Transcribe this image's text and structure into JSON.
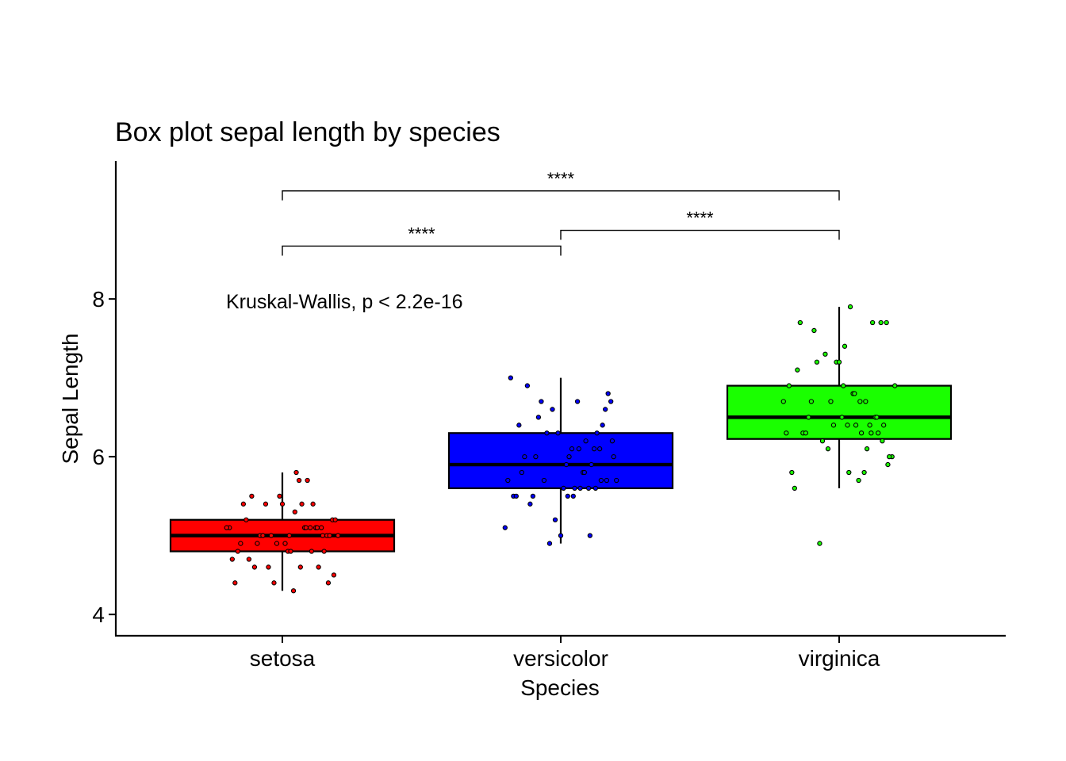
{
  "chart_data": {
    "type": "box",
    "title": "Box plot sepal length by species",
    "xlabel": "Species",
    "ylabel": "Sepal Length",
    "ylim": [
      3.73,
      9.75
    ],
    "yticks": [
      4,
      6,
      8
    ],
    "ytick_labels": [
      "4",
      "6",
      "8"
    ],
    "categories": [
      "setosa",
      "versicolor",
      "virginica"
    ],
    "annotation": "Kruskal-Wallis, p < 2.2e-16",
    "colors": {
      "setosa": "#ff0000",
      "versicolor": "#0000ff",
      "virginica": "#1aff00"
    },
    "boxes": [
      {
        "name": "setosa",
        "q1": 4.8,
        "median": 5.0,
        "q3": 5.2,
        "whisker_low": 4.3,
        "whisker_high": 5.8,
        "outliers": []
      },
      {
        "name": "versicolor",
        "q1": 5.6,
        "median": 5.9,
        "q3": 6.3,
        "whisker_low": 4.9,
        "whisker_high": 7.0,
        "outliers": []
      },
      {
        "name": "virginica",
        "q1": 6.225,
        "median": 6.5,
        "q3": 6.9,
        "whisker_low": 5.6,
        "whisker_high": 7.9,
        "outliers": [
          4.9
        ]
      }
    ],
    "comparisons": [
      {
        "group1": "setosa",
        "group2": "versicolor",
        "y": 8.67,
        "label": "****"
      },
      {
        "group1": "versicolor",
        "group2": "virginica",
        "y": 8.87,
        "label": "****"
      },
      {
        "group1": "setosa",
        "group2": "virginica",
        "y": 9.37,
        "label": "****"
      }
    ],
    "points": {
      "setosa": [
        [
          -0.19,
          5.1
        ],
        [
          -0.15,
          4.9
        ],
        [
          -0.12,
          4.7
        ],
        [
          -0.1,
          4.6
        ],
        [
          -0.08,
          5.0
        ],
        [
          -0.06,
          5.4
        ],
        [
          -0.05,
          4.6
        ],
        [
          -0.04,
          5.0
        ],
        [
          -0.03,
          4.4
        ],
        [
          -0.02,
          4.9
        ],
        [
          0.0,
          5.4
        ],
        [
          0.02,
          4.8
        ],
        [
          0.03,
          4.8
        ],
        [
          0.04,
          4.3
        ],
        [
          0.05,
          5.8
        ],
        [
          0.06,
          5.7
        ],
        [
          0.07,
          5.4
        ],
        [
          0.08,
          5.1
        ],
        [
          0.09,
          5.7
        ],
        [
          0.1,
          5.1
        ],
        [
          0.11,
          5.4
        ],
        [
          0.12,
          5.1
        ],
        [
          0.13,
          4.6
        ],
        [
          0.14,
          5.1
        ],
        [
          0.15,
          4.8
        ],
        [
          0.16,
          5.0
        ],
        [
          0.17,
          5.0
        ],
        [
          0.18,
          5.2
        ],
        [
          0.19,
          5.2
        ],
        [
          -0.18,
          4.7
        ],
        [
          -0.16,
          4.8
        ],
        [
          -0.14,
          5.4
        ],
        [
          -0.13,
          5.2
        ],
        [
          -0.11,
          5.5
        ],
        [
          -0.09,
          4.9
        ],
        [
          -0.07,
          5.0
        ],
        [
          -0.01,
          5.5
        ],
        [
          0.01,
          4.9
        ],
        [
          -0.17,
          4.4
        ],
        [
          -0.2,
          5.1
        ],
        [
          0.2,
          5.0
        ],
        [
          0.185,
          4.5
        ],
        [
          0.165,
          4.4
        ],
        [
          0.145,
          5.0
        ],
        [
          0.125,
          5.1
        ],
        [
          0.105,
          4.8
        ],
        [
          0.085,
          5.1
        ],
        [
          0.065,
          4.6
        ],
        [
          0.045,
          5.3
        ],
        [
          0.025,
          5.0
        ]
      ],
      "versicolor": [
        [
          -0.18,
          7.0
        ],
        [
          -0.15,
          6.4
        ],
        [
          -0.12,
          6.9
        ],
        [
          -0.1,
          5.5
        ],
        [
          -0.08,
          6.5
        ],
        [
          -0.06,
          5.7
        ],
        [
          -0.05,
          6.3
        ],
        [
          -0.04,
          4.9
        ],
        [
          -0.03,
          6.6
        ],
        [
          -0.02,
          5.2
        ],
        [
          0.0,
          5.0
        ],
        [
          0.02,
          5.9
        ],
        [
          0.03,
          6.0
        ],
        [
          0.04,
          6.1
        ],
        [
          0.05,
          5.6
        ],
        [
          0.06,
          6.7
        ],
        [
          0.07,
          5.6
        ],
        [
          0.08,
          5.8
        ],
        [
          0.09,
          6.2
        ],
        [
          0.1,
          5.6
        ],
        [
          0.11,
          5.9
        ],
        [
          0.12,
          6.1
        ],
        [
          0.13,
          6.3
        ],
        [
          0.14,
          6.1
        ],
        [
          0.15,
          6.4
        ],
        [
          0.16,
          6.6
        ],
        [
          0.17,
          6.8
        ],
        [
          0.18,
          6.7
        ],
        [
          0.19,
          6.0
        ],
        [
          -0.19,
          5.7
        ],
        [
          -0.17,
          5.5
        ],
        [
          -0.16,
          5.5
        ],
        [
          -0.14,
          5.8
        ],
        [
          -0.13,
          6.0
        ],
        [
          -0.11,
          5.4
        ],
        [
          -0.09,
          6.0
        ],
        [
          -0.07,
          6.7
        ],
        [
          -0.01,
          6.3
        ],
        [
          0.01,
          5.6
        ],
        [
          0.025,
          5.5
        ],
        [
          0.045,
          5.5
        ],
        [
          0.065,
          6.1
        ],
        [
          0.085,
          5.8
        ],
        [
          0.105,
          5.0
        ],
        [
          0.125,
          5.6
        ],
        [
          0.145,
          5.7
        ],
        [
          0.165,
          5.7
        ],
        [
          0.185,
          6.2
        ],
        [
          -0.2,
          5.1
        ],
        [
          0.2,
          5.7
        ]
      ],
      "virginica": [
        [
          -0.19,
          6.3
        ],
        [
          -0.17,
          5.8
        ],
        [
          -0.15,
          7.1
        ],
        [
          -0.13,
          6.3
        ],
        [
          -0.11,
          6.5
        ],
        [
          -0.09,
          7.6
        ],
        [
          -0.07,
          4.9
        ],
        [
          -0.05,
          7.3
        ],
        [
          -0.03,
          6.7
        ],
        [
          -0.01,
          7.2
        ],
        [
          0.01,
          6.5
        ],
        [
          0.03,
          6.4
        ],
        [
          0.05,
          6.8
        ],
        [
          0.07,
          5.7
        ],
        [
          0.09,
          5.8
        ],
        [
          0.11,
          6.4
        ],
        [
          0.13,
          6.5
        ],
        [
          0.15,
          7.7
        ],
        [
          0.17,
          7.7
        ],
        [
          0.19,
          6.0
        ],
        [
          -0.18,
          6.9
        ],
        [
          -0.16,
          5.6
        ],
        [
          -0.14,
          7.7
        ],
        [
          -0.12,
          6.3
        ],
        [
          -0.1,
          6.7
        ],
        [
          -0.08,
          7.2
        ],
        [
          -0.06,
          6.2
        ],
        [
          -0.04,
          6.1
        ],
        [
          -0.02,
          6.4
        ],
        [
          0.0,
          7.2
        ],
        [
          0.02,
          7.4
        ],
        [
          0.04,
          7.9
        ],
        [
          0.06,
          6.4
        ],
        [
          0.08,
          6.3
        ],
        [
          0.1,
          6.1
        ],
        [
          0.12,
          7.7
        ],
        [
          0.14,
          6.3
        ],
        [
          0.16,
          6.4
        ],
        [
          0.18,
          6.0
        ],
        [
          0.2,
          6.9
        ],
        [
          -0.2,
          6.7
        ],
        [
          0.015,
          6.9
        ],
        [
          0.035,
          5.8
        ],
        [
          0.055,
          6.8
        ],
        [
          0.075,
          6.7
        ],
        [
          0.095,
          6.7
        ],
        [
          0.115,
          6.3
        ],
        [
          0.135,
          6.5
        ],
        [
          0.155,
          6.2
        ],
        [
          0.175,
          5.9
        ]
      ]
    }
  }
}
